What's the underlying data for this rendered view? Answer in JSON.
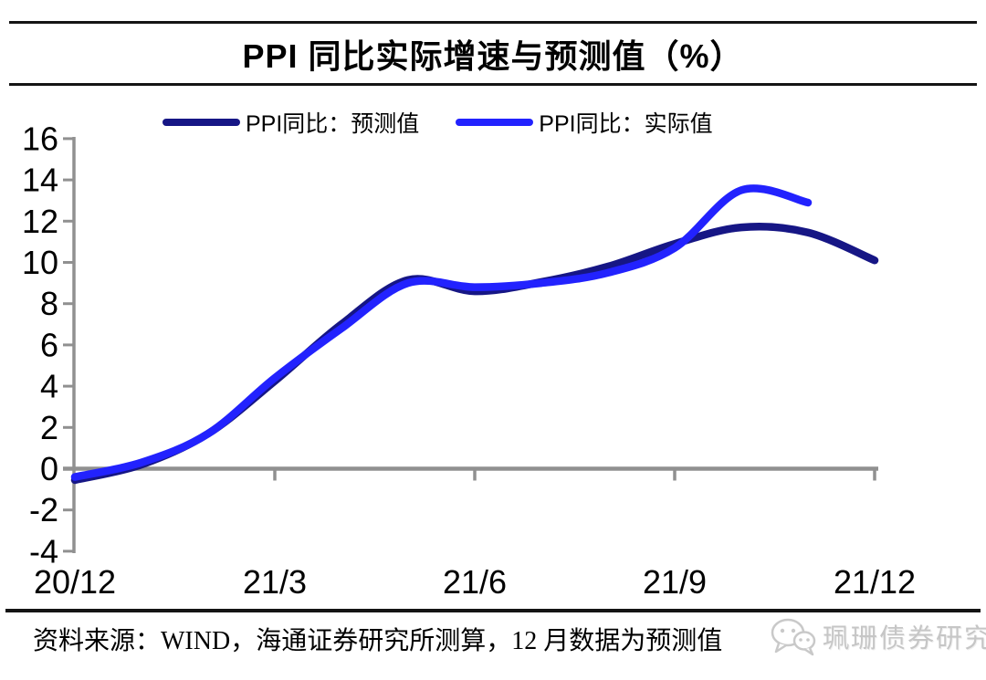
{
  "header": {
    "title": "PPI 同比实际增速与预测值（%）"
  },
  "chart_data": {
    "type": "line",
    "title": "PPI 同比实际增速与预测值（%）",
    "x": [
      "20/12",
      "21/1",
      "21/2",
      "21/3",
      "21/4",
      "21/5",
      "21/6",
      "21/7",
      "21/8",
      "21/9",
      "21/10",
      "21/11",
      "21/12"
    ],
    "x_axis_tick_positions": [
      0,
      3,
      6,
      9,
      12
    ],
    "x_axis_tick_labels": [
      "20/12",
      "21/3",
      "21/6",
      "21/9",
      "21/12"
    ],
    "y_ticks": [
      16,
      14,
      12,
      10,
      8,
      6,
      4,
      2,
      0,
      -2,
      -4
    ],
    "ylim": [
      -4,
      16
    ],
    "grid": false,
    "legend_position": "top",
    "series": [
      {
        "name": "PPI同比：预测值",
        "color": "#161685",
        "values": [
          -0.55,
          0.2,
          1.7,
          4.25,
          7.0,
          9.15,
          8.6,
          9.05,
          9.8,
          10.9,
          11.7,
          11.45,
          10.1
        ]
      },
      {
        "name": "PPI同比：实际值",
        "color": "#2222fe",
        "values": [
          -0.4,
          0.3,
          1.7,
          4.4,
          6.8,
          9.0,
          8.8,
          9.0,
          9.5,
          10.7,
          13.5,
          12.9
        ]
      }
    ],
    "axis_color": "#909090",
    "tick_label_color": "#000000",
    "tick_label_font_size": 36
  },
  "footer": {
    "source_text": "资料来源：WIND，海通证券研究所测算，12 月数据为预测值",
    "watermark_text": "珮珊债券研究",
    "watermark_icon": "wechat-chat-bubbles-icon"
  }
}
